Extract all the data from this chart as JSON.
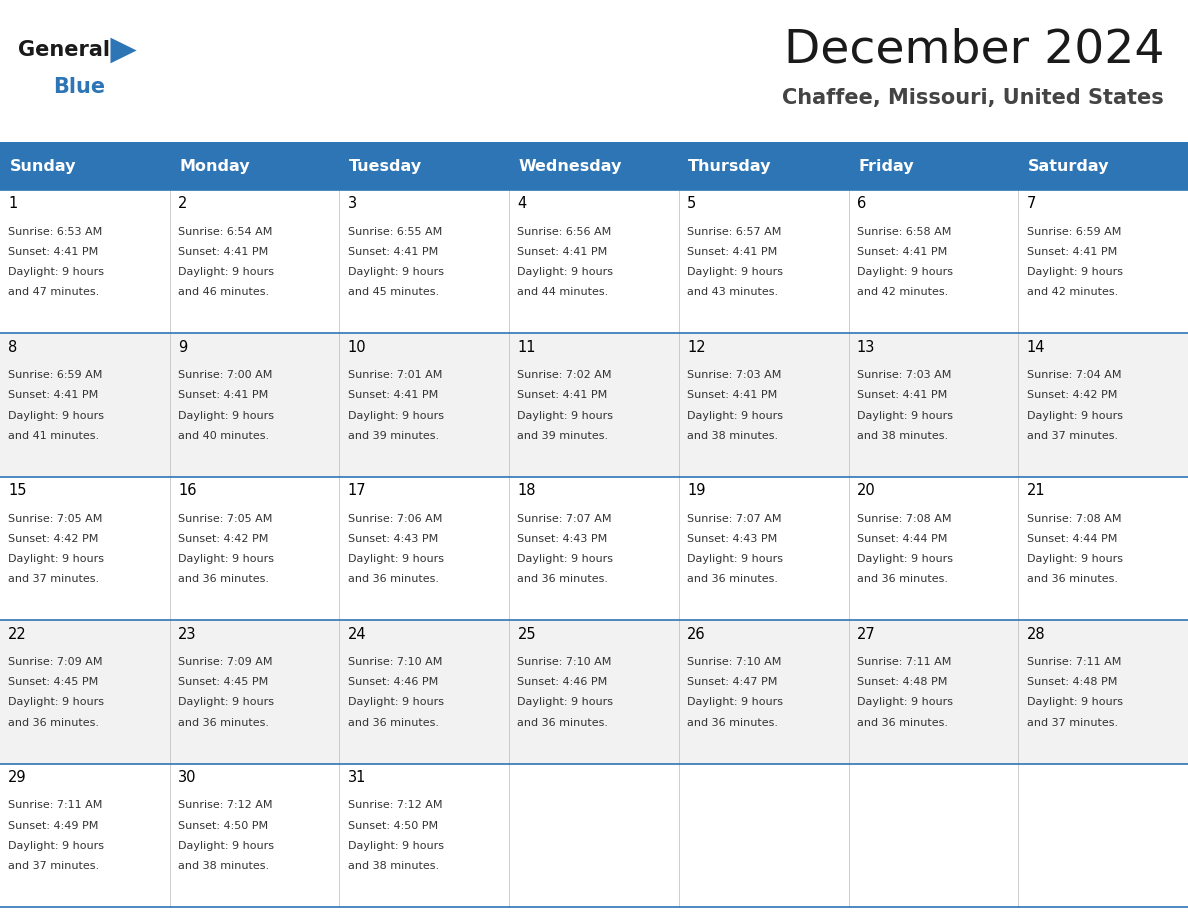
{
  "title": "December 2024",
  "subtitle": "Chaffee, Missouri, United States",
  "days_of_week": [
    "Sunday",
    "Monday",
    "Tuesday",
    "Wednesday",
    "Thursday",
    "Friday",
    "Saturday"
  ],
  "header_bg": "#2E75B6",
  "header_text": "#FFFFFF",
  "cell_bg_light": "#FFFFFF",
  "cell_bg_alt": "#F2F2F2",
  "grid_line_color": "#2E75B6",
  "day_number_color": "#000000",
  "cell_text_color": "#333333",
  "title_color": "#1a1a1a",
  "subtitle_color": "#444444",
  "logo_general_color": "#1a1a1a",
  "logo_blue_color": "#2E75B6",
  "weeks": [
    {
      "days": [
        {
          "date": 1,
          "sunrise": "6:53 AM",
          "sunset": "4:41 PM",
          "daylight_hours": 9,
          "daylight_minutes": 47
        },
        {
          "date": 2,
          "sunrise": "6:54 AM",
          "sunset": "4:41 PM",
          "daylight_hours": 9,
          "daylight_minutes": 46
        },
        {
          "date": 3,
          "sunrise": "6:55 AM",
          "sunset": "4:41 PM",
          "daylight_hours": 9,
          "daylight_minutes": 45
        },
        {
          "date": 4,
          "sunrise": "6:56 AM",
          "sunset": "4:41 PM",
          "daylight_hours": 9,
          "daylight_minutes": 44
        },
        {
          "date": 5,
          "sunrise": "6:57 AM",
          "sunset": "4:41 PM",
          "daylight_hours": 9,
          "daylight_minutes": 43
        },
        {
          "date": 6,
          "sunrise": "6:58 AM",
          "sunset": "4:41 PM",
          "daylight_hours": 9,
          "daylight_minutes": 42
        },
        {
          "date": 7,
          "sunrise": "6:59 AM",
          "sunset": "4:41 PM",
          "daylight_hours": 9,
          "daylight_minutes": 42
        }
      ]
    },
    {
      "days": [
        {
          "date": 8,
          "sunrise": "6:59 AM",
          "sunset": "4:41 PM",
          "daylight_hours": 9,
          "daylight_minutes": 41
        },
        {
          "date": 9,
          "sunrise": "7:00 AM",
          "sunset": "4:41 PM",
          "daylight_hours": 9,
          "daylight_minutes": 40
        },
        {
          "date": 10,
          "sunrise": "7:01 AM",
          "sunset": "4:41 PM",
          "daylight_hours": 9,
          "daylight_minutes": 39
        },
        {
          "date": 11,
          "sunrise": "7:02 AM",
          "sunset": "4:41 PM",
          "daylight_hours": 9,
          "daylight_minutes": 39
        },
        {
          "date": 12,
          "sunrise": "7:03 AM",
          "sunset": "4:41 PM",
          "daylight_hours": 9,
          "daylight_minutes": 38
        },
        {
          "date": 13,
          "sunrise": "7:03 AM",
          "sunset": "4:41 PM",
          "daylight_hours": 9,
          "daylight_minutes": 38
        },
        {
          "date": 14,
          "sunrise": "7:04 AM",
          "sunset": "4:42 PM",
          "daylight_hours": 9,
          "daylight_minutes": 37
        }
      ]
    },
    {
      "days": [
        {
          "date": 15,
          "sunrise": "7:05 AM",
          "sunset": "4:42 PM",
          "daylight_hours": 9,
          "daylight_minutes": 37
        },
        {
          "date": 16,
          "sunrise": "7:05 AM",
          "sunset": "4:42 PM",
          "daylight_hours": 9,
          "daylight_minutes": 36
        },
        {
          "date": 17,
          "sunrise": "7:06 AM",
          "sunset": "4:43 PM",
          "daylight_hours": 9,
          "daylight_minutes": 36
        },
        {
          "date": 18,
          "sunrise": "7:07 AM",
          "sunset": "4:43 PM",
          "daylight_hours": 9,
          "daylight_minutes": 36
        },
        {
          "date": 19,
          "sunrise": "7:07 AM",
          "sunset": "4:43 PM",
          "daylight_hours": 9,
          "daylight_minutes": 36
        },
        {
          "date": 20,
          "sunrise": "7:08 AM",
          "sunset": "4:44 PM",
          "daylight_hours": 9,
          "daylight_minutes": 36
        },
        {
          "date": 21,
          "sunrise": "7:08 AM",
          "sunset": "4:44 PM",
          "daylight_hours": 9,
          "daylight_minutes": 36
        }
      ]
    },
    {
      "days": [
        {
          "date": 22,
          "sunrise": "7:09 AM",
          "sunset": "4:45 PM",
          "daylight_hours": 9,
          "daylight_minutes": 36
        },
        {
          "date": 23,
          "sunrise": "7:09 AM",
          "sunset": "4:45 PM",
          "daylight_hours": 9,
          "daylight_minutes": 36
        },
        {
          "date": 24,
          "sunrise": "7:10 AM",
          "sunset": "4:46 PM",
          "daylight_hours": 9,
          "daylight_minutes": 36
        },
        {
          "date": 25,
          "sunrise": "7:10 AM",
          "sunset": "4:46 PM",
          "daylight_hours": 9,
          "daylight_minutes": 36
        },
        {
          "date": 26,
          "sunrise": "7:10 AM",
          "sunset": "4:47 PM",
          "daylight_hours": 9,
          "daylight_minutes": 36
        },
        {
          "date": 27,
          "sunrise": "7:11 AM",
          "sunset": "4:48 PM",
          "daylight_hours": 9,
          "daylight_minutes": 36
        },
        {
          "date": 28,
          "sunrise": "7:11 AM",
          "sunset": "4:48 PM",
          "daylight_hours": 9,
          "daylight_minutes": 37
        }
      ]
    },
    {
      "days": [
        {
          "date": 29,
          "sunrise": "7:11 AM",
          "sunset": "4:49 PM",
          "daylight_hours": 9,
          "daylight_minutes": 37
        },
        {
          "date": 30,
          "sunrise": "7:12 AM",
          "sunset": "4:50 PM",
          "daylight_hours": 9,
          "daylight_minutes": 38
        },
        {
          "date": 31,
          "sunrise": "7:12 AM",
          "sunset": "4:50 PM",
          "daylight_hours": 9,
          "daylight_minutes": 38
        },
        null,
        null,
        null,
        null
      ]
    }
  ]
}
